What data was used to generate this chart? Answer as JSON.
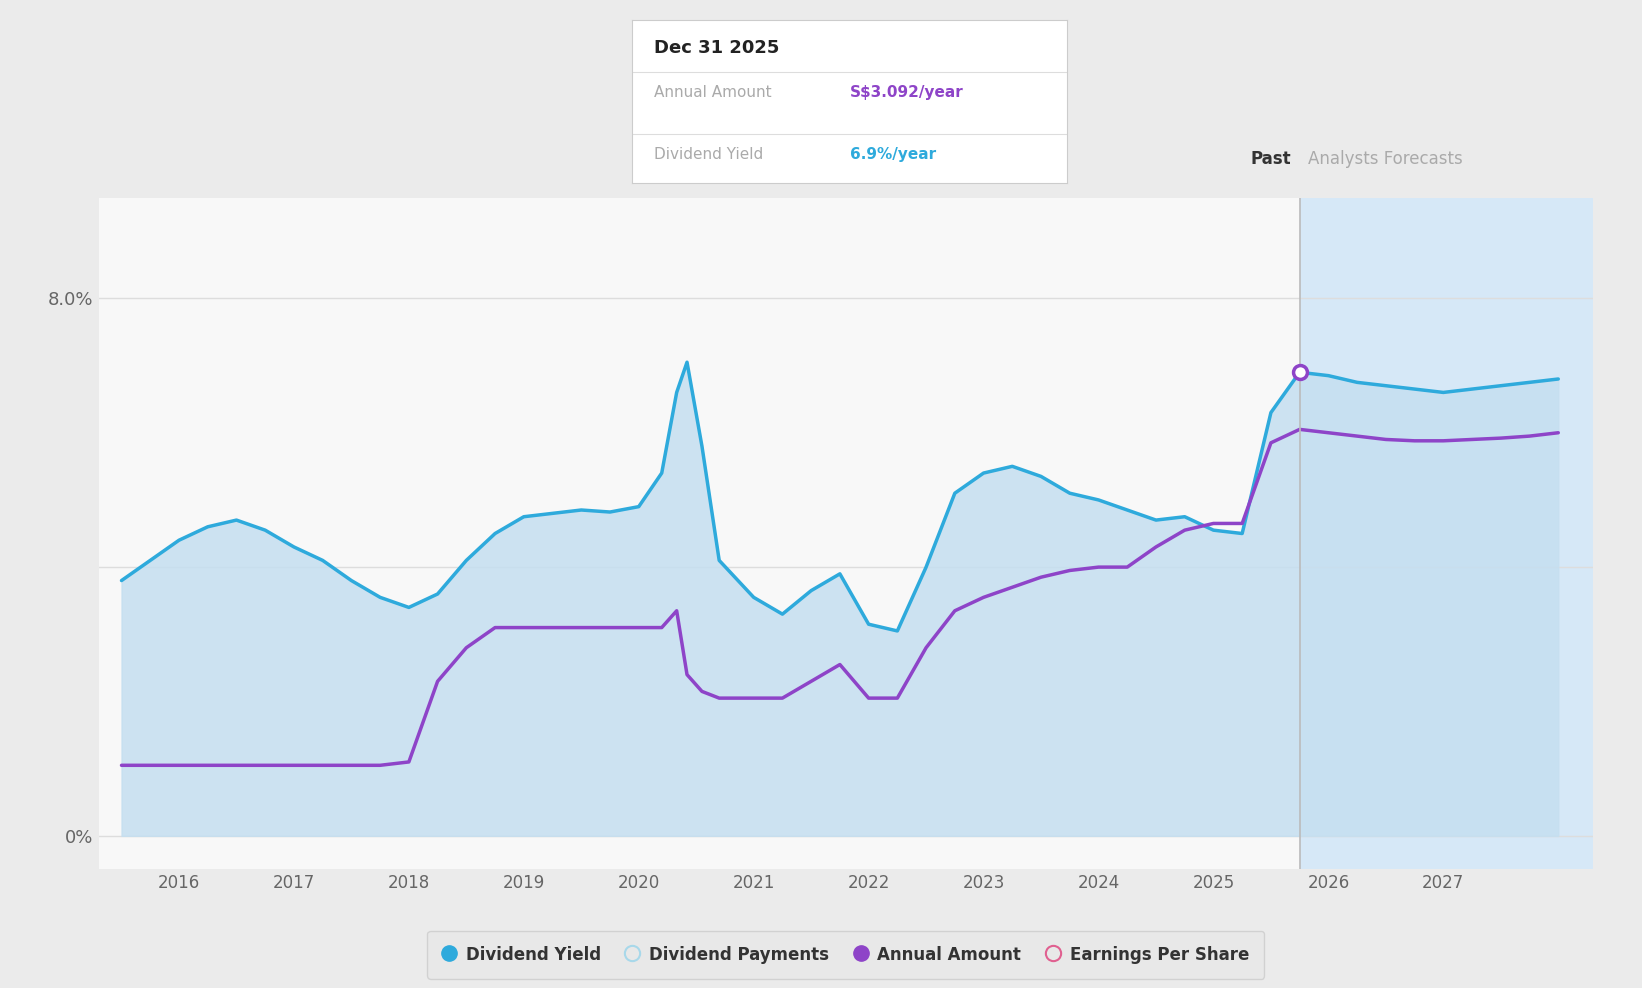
{
  "bg_color": "#ebebeb",
  "plot_bg_color": "#f8f8f8",
  "forecast_bg_color": "#d6e8f7",
  "grid_color": "#dddddd",
  "blue_line_color": "#2eaadc",
  "blue_fill_color": "#c5dff0",
  "purple_line_color": "#8e44c8",
  "divider_x": 2025.75,
  "past_label": "Past",
  "forecast_label": "Analysts Forecasts",
  "xlim": [
    2015.3,
    2028.3
  ],
  "ylim": [
    -0.5,
    9.5
  ],
  "y_max_label": 8.0,
  "tooltip_title": "Dec 31 2025",
  "tooltip_annual_label": "Annual Amount",
  "tooltip_annual_value": "S$3.092/year",
  "tooltip_annual_color": "#8e44c8",
  "tooltip_yield_label": "Dividend Yield",
  "tooltip_yield_value": "6.9%/year",
  "tooltip_yield_color": "#2eaadc",
  "dividend_yield_x": [
    2015.5,
    2015.75,
    2016.0,
    2016.25,
    2016.5,
    2016.75,
    2017.0,
    2017.25,
    2017.5,
    2017.75,
    2018.0,
    2018.25,
    2018.5,
    2018.75,
    2019.0,
    2019.25,
    2019.5,
    2019.75,
    2020.0,
    2020.2,
    2020.33,
    2020.42,
    2020.55,
    2020.7,
    2021.0,
    2021.25,
    2021.5,
    2021.75,
    2022.0,
    2022.25,
    2022.5,
    2022.75,
    2023.0,
    2023.25,
    2023.5,
    2023.75,
    2024.0,
    2024.25,
    2024.5,
    2024.75,
    2025.0,
    2025.25,
    2025.5,
    2025.75,
    2026.0,
    2026.25,
    2026.5,
    2026.75,
    2027.0,
    2027.25,
    2027.5,
    2027.75,
    2028.0
  ],
  "dividend_yield_y": [
    3.8,
    4.1,
    4.4,
    4.6,
    4.7,
    4.55,
    4.3,
    4.1,
    3.8,
    3.55,
    3.4,
    3.6,
    4.1,
    4.5,
    4.75,
    4.8,
    4.85,
    4.82,
    4.9,
    5.4,
    6.6,
    7.05,
    5.8,
    4.1,
    3.55,
    3.3,
    3.65,
    3.9,
    3.15,
    3.05,
    4.0,
    5.1,
    5.4,
    5.5,
    5.35,
    5.1,
    5.0,
    4.85,
    4.7,
    4.75,
    4.55,
    4.5,
    6.3,
    6.9,
    6.85,
    6.75,
    6.7,
    6.65,
    6.6,
    6.65,
    6.7,
    6.75,
    6.8
  ],
  "annual_amount_x": [
    2015.5,
    2015.75,
    2016.0,
    2016.25,
    2016.5,
    2016.75,
    2017.0,
    2017.25,
    2017.5,
    2017.75,
    2018.0,
    2018.25,
    2018.5,
    2018.75,
    2019.0,
    2019.25,
    2019.5,
    2019.75,
    2020.0,
    2020.2,
    2020.33,
    2020.42,
    2020.55,
    2020.7,
    2021.0,
    2021.25,
    2021.5,
    2021.75,
    2022.0,
    2022.25,
    2022.5,
    2022.75,
    2023.0,
    2023.25,
    2023.5,
    2023.75,
    2024.0,
    2024.25,
    2024.5,
    2024.75,
    2025.0,
    2025.25,
    2025.5,
    2025.75,
    2026.0,
    2026.25,
    2026.5,
    2026.75,
    2027.0,
    2027.25,
    2027.5,
    2027.75,
    2028.0
  ],
  "annual_amount_y": [
    1.05,
    1.05,
    1.05,
    1.05,
    1.05,
    1.05,
    1.05,
    1.05,
    1.05,
    1.05,
    1.1,
    2.3,
    2.8,
    3.1,
    3.1,
    3.1,
    3.1,
    3.1,
    3.1,
    3.1,
    3.35,
    2.4,
    2.15,
    2.05,
    2.05,
    2.05,
    2.3,
    2.55,
    2.05,
    2.05,
    2.8,
    3.35,
    3.55,
    3.7,
    3.85,
    3.95,
    4.0,
    4.0,
    4.3,
    4.55,
    4.65,
    4.65,
    5.85,
    6.05,
    6.0,
    5.95,
    5.9,
    5.88,
    5.88,
    5.9,
    5.92,
    5.95,
    6.0
  ],
  "marker_x": 2025.75,
  "marker_y": 6.9,
  "marker_color": "#8e44c8",
  "marker_outline": "#ffffff",
  "legend_items": [
    {
      "label": "Dividend Yield",
      "color": "#2eaadc",
      "type": "circle_filled"
    },
    {
      "label": "Dividend Payments",
      "color": "#a8d8ea",
      "type": "circle_open"
    },
    {
      "label": "Annual Amount",
      "color": "#8e44c8",
      "type": "circle_filled"
    },
    {
      "label": "Earnings Per Share",
      "color": "#e06090",
      "type": "circle_open"
    }
  ],
  "xtick_vals": [
    2016,
    2017,
    2018,
    2019,
    2020,
    2021,
    2022,
    2023,
    2024,
    2025,
    2026,
    2027
  ]
}
